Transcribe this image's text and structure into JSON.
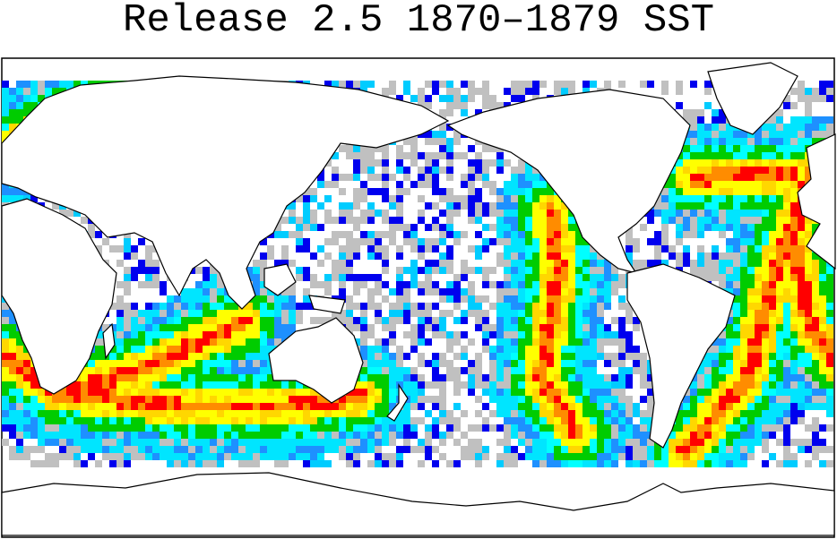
{
  "title": "Release 2.5 1870–1879 SST"
}
